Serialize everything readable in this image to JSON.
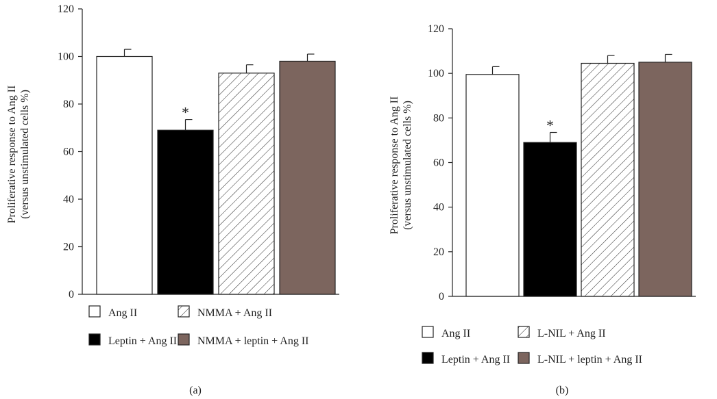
{
  "chart_data": [
    {
      "type": "bar",
      "panel_label": "(a)",
      "ylabel_line1": "Proliferative response to Ang II",
      "ylabel_line2": "(versus unstimulated cells %)",
      "ylim": [
        0,
        120
      ],
      "yticks": [
        0,
        20,
        40,
        60,
        80,
        100,
        120
      ],
      "categories": [
        "Ang II",
        "Leptin + Ang II",
        "NMMA + Ang II",
        "NMMA + leptin + Ang II"
      ],
      "values": [
        100,
        69,
        93,
        98
      ],
      "errors": [
        3,
        4.5,
        3.5,
        3
      ],
      "significance": [
        "",
        "*",
        "",
        ""
      ],
      "fills": [
        "white",
        "black",
        "hatch",
        "#7c655e"
      ],
      "grid": false,
      "legend_position": "bottom"
    },
    {
      "type": "bar",
      "panel_label": "(b)",
      "ylabel_line1": "Proliferative response to Ang II",
      "ylabel_line2": "(versus unstimulated cells %)",
      "ylim": [
        0,
        120
      ],
      "yticks": [
        0,
        20,
        40,
        60,
        80,
        100,
        120
      ],
      "categories": [
        "Ang II",
        "Leptin + Ang II",
        "L-NIL + Ang II",
        "L-NIL + leptin + Ang II"
      ],
      "values": [
        99.5,
        69,
        104.5,
        105
      ],
      "errors": [
        3.5,
        4.5,
        3.5,
        3.5
      ],
      "significance": [
        "",
        "*",
        "",
        ""
      ],
      "fills": [
        "white",
        "black",
        "hatch",
        "#7c655e"
      ],
      "grid": false,
      "legend_position": "bottom"
    }
  ]
}
